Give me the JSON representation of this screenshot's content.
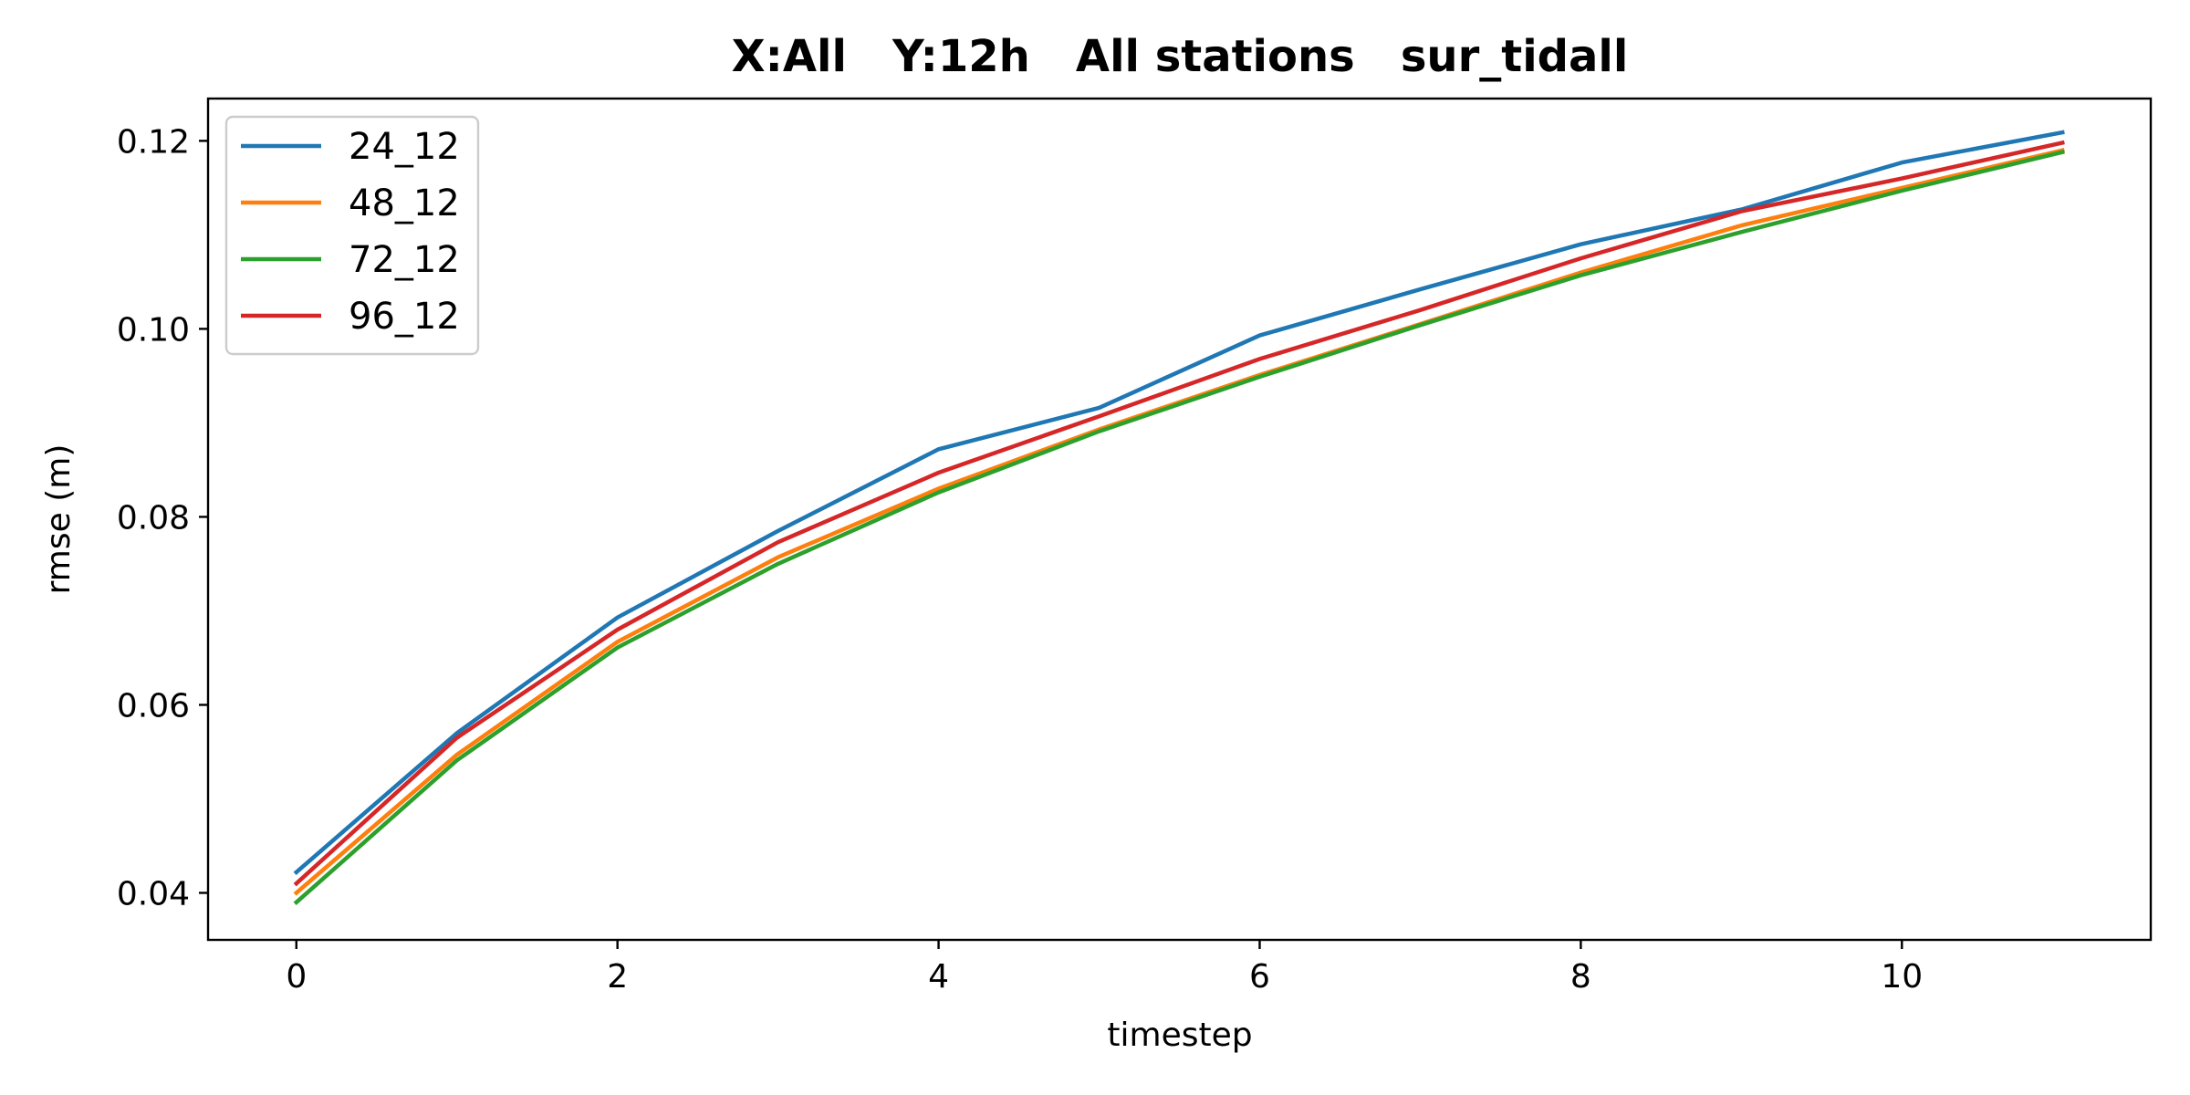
{
  "chart_data": {
    "type": "line",
    "title": "X:All   Y:12h   All stations   sur_tidall",
    "xlabel": "timestep",
    "ylabel": "rmse (m)",
    "x": [
      0,
      1,
      2,
      3,
      4,
      5,
      6,
      7,
      8,
      9,
      10,
      11
    ],
    "xlim": [
      -0.55,
      11.55
    ],
    "ylim": [
      0.035,
      0.1245
    ],
    "xticks": [
      0,
      2,
      4,
      6,
      8,
      10
    ],
    "xtick_labels": [
      "0",
      "2",
      "4",
      "6",
      "8",
      "10"
    ],
    "yticks": [
      0.04,
      0.06,
      0.08,
      0.1,
      0.12
    ],
    "ytick_labels": [
      "0.04",
      "0.06",
      "0.08",
      "0.10",
      "0.12"
    ],
    "grid": false,
    "legend_position": "top-left",
    "series": [
      {
        "name": "24_12",
        "color": "#1f77b4",
        "values": [
          0.0422,
          0.057,
          0.0693,
          0.0785,
          0.0872,
          0.0916,
          0.0993,
          0.1042,
          0.109,
          0.1127,
          0.1177,
          0.1209
        ]
      },
      {
        "name": "48_12",
        "color": "#ff7f0e",
        "values": [
          0.04,
          0.0547,
          0.0667,
          0.0757,
          0.083,
          0.0893,
          0.0951,
          0.1005,
          0.106,
          0.111,
          0.115,
          0.119
        ]
      },
      {
        "name": "72_12",
        "color": "#2ca02c",
        "values": [
          0.039,
          0.0541,
          0.0661,
          0.075,
          0.0826,
          0.0891,
          0.0949,
          0.1004,
          0.1057,
          0.1103,
          0.1147,
          0.1188
        ]
      },
      {
        "name": "96_12",
        "color": "#d62728",
        "values": [
          0.041,
          0.0565,
          0.068,
          0.0773,
          0.0847,
          0.0907,
          0.0968,
          0.102,
          0.1075,
          0.1125,
          0.116,
          0.1198
        ]
      }
    ]
  }
}
